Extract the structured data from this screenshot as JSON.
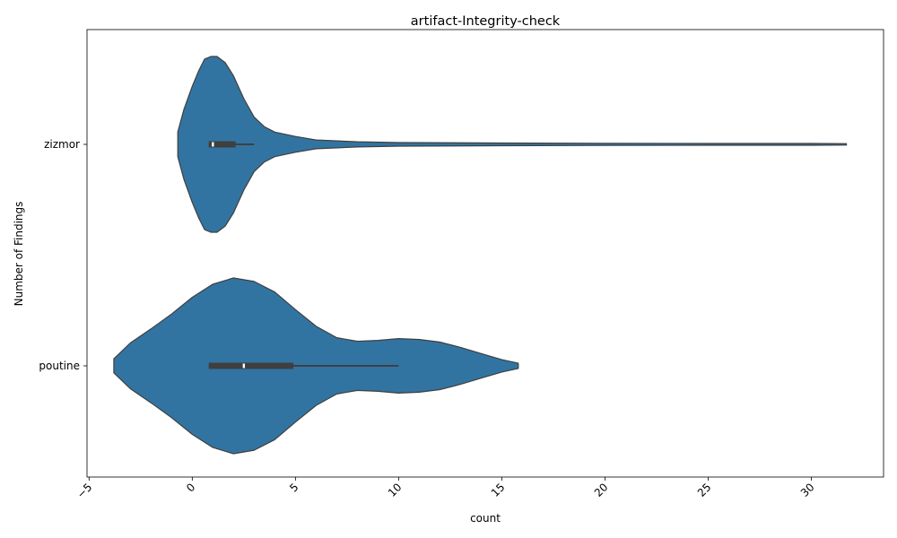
{
  "chart_data": {
    "type": "violin",
    "orientation": "horizontal",
    "title": "artifact-Integrity-check",
    "xlabel": "count",
    "ylabel": "Number of Findings",
    "xlim": [
      -5.1,
      33.5
    ],
    "x_ticks": [
      -5,
      0,
      5,
      10,
      15,
      20,
      25,
      30
    ],
    "x_tick_labels": [
      "−5",
      "0",
      "5",
      "10",
      "15",
      "20",
      "25",
      "30"
    ],
    "x_tick_rotation": 45,
    "categories": [
      "zizmor",
      "poutine"
    ],
    "color": "#3274a1",
    "box_color": "#3f3f3f",
    "series": [
      {
        "name": "zizmor",
        "density": [
          [
            -0.7,
            0.14
          ],
          [
            -0.4,
            0.4
          ],
          [
            0.0,
            0.66
          ],
          [
            0.3,
            0.83
          ],
          [
            0.6,
            0.97
          ],
          [
            0.9,
            1.0
          ],
          [
            1.2,
            1.0
          ],
          [
            1.6,
            0.93
          ],
          [
            2.0,
            0.78
          ],
          [
            2.5,
            0.52
          ],
          [
            3.0,
            0.31
          ],
          [
            3.5,
            0.2
          ],
          [
            4.0,
            0.14
          ],
          [
            5.0,
            0.09
          ],
          [
            6.0,
            0.05
          ],
          [
            8.0,
            0.03
          ],
          [
            10.0,
            0.02
          ],
          [
            15.0,
            0.015
          ],
          [
            20.0,
            0.012
          ],
          [
            25.0,
            0.01
          ],
          [
            30.0,
            0.01
          ],
          [
            31.7,
            0.008
          ]
        ],
        "box": {
          "q1": 0.8,
          "median": 1.0,
          "q3": 2.1,
          "whisker_low": 0.8,
          "whisker_high": 3.0
        }
      },
      {
        "name": "poutine",
        "density": [
          [
            -3.8,
            0.08
          ],
          [
            -3.0,
            0.26
          ],
          [
            -2.0,
            0.42
          ],
          [
            -1.0,
            0.59
          ],
          [
            0.0,
            0.78
          ],
          [
            1.0,
            0.93
          ],
          [
            2.0,
            1.0
          ],
          [
            3.0,
            0.96
          ],
          [
            4.0,
            0.84
          ],
          [
            5.0,
            0.64
          ],
          [
            6.0,
            0.45
          ],
          [
            7.0,
            0.32
          ],
          [
            8.0,
            0.28
          ],
          [
            9.0,
            0.29
          ],
          [
            10.0,
            0.31
          ],
          [
            11.0,
            0.3
          ],
          [
            12.0,
            0.27
          ],
          [
            13.0,
            0.21
          ],
          [
            14.0,
            0.14
          ],
          [
            15.0,
            0.07
          ],
          [
            15.8,
            0.03
          ]
        ],
        "box": {
          "q1": 0.8,
          "median": 2.5,
          "q3": 4.9,
          "whisker_low": 0.8,
          "whisker_high": 10.0
        }
      }
    ]
  }
}
